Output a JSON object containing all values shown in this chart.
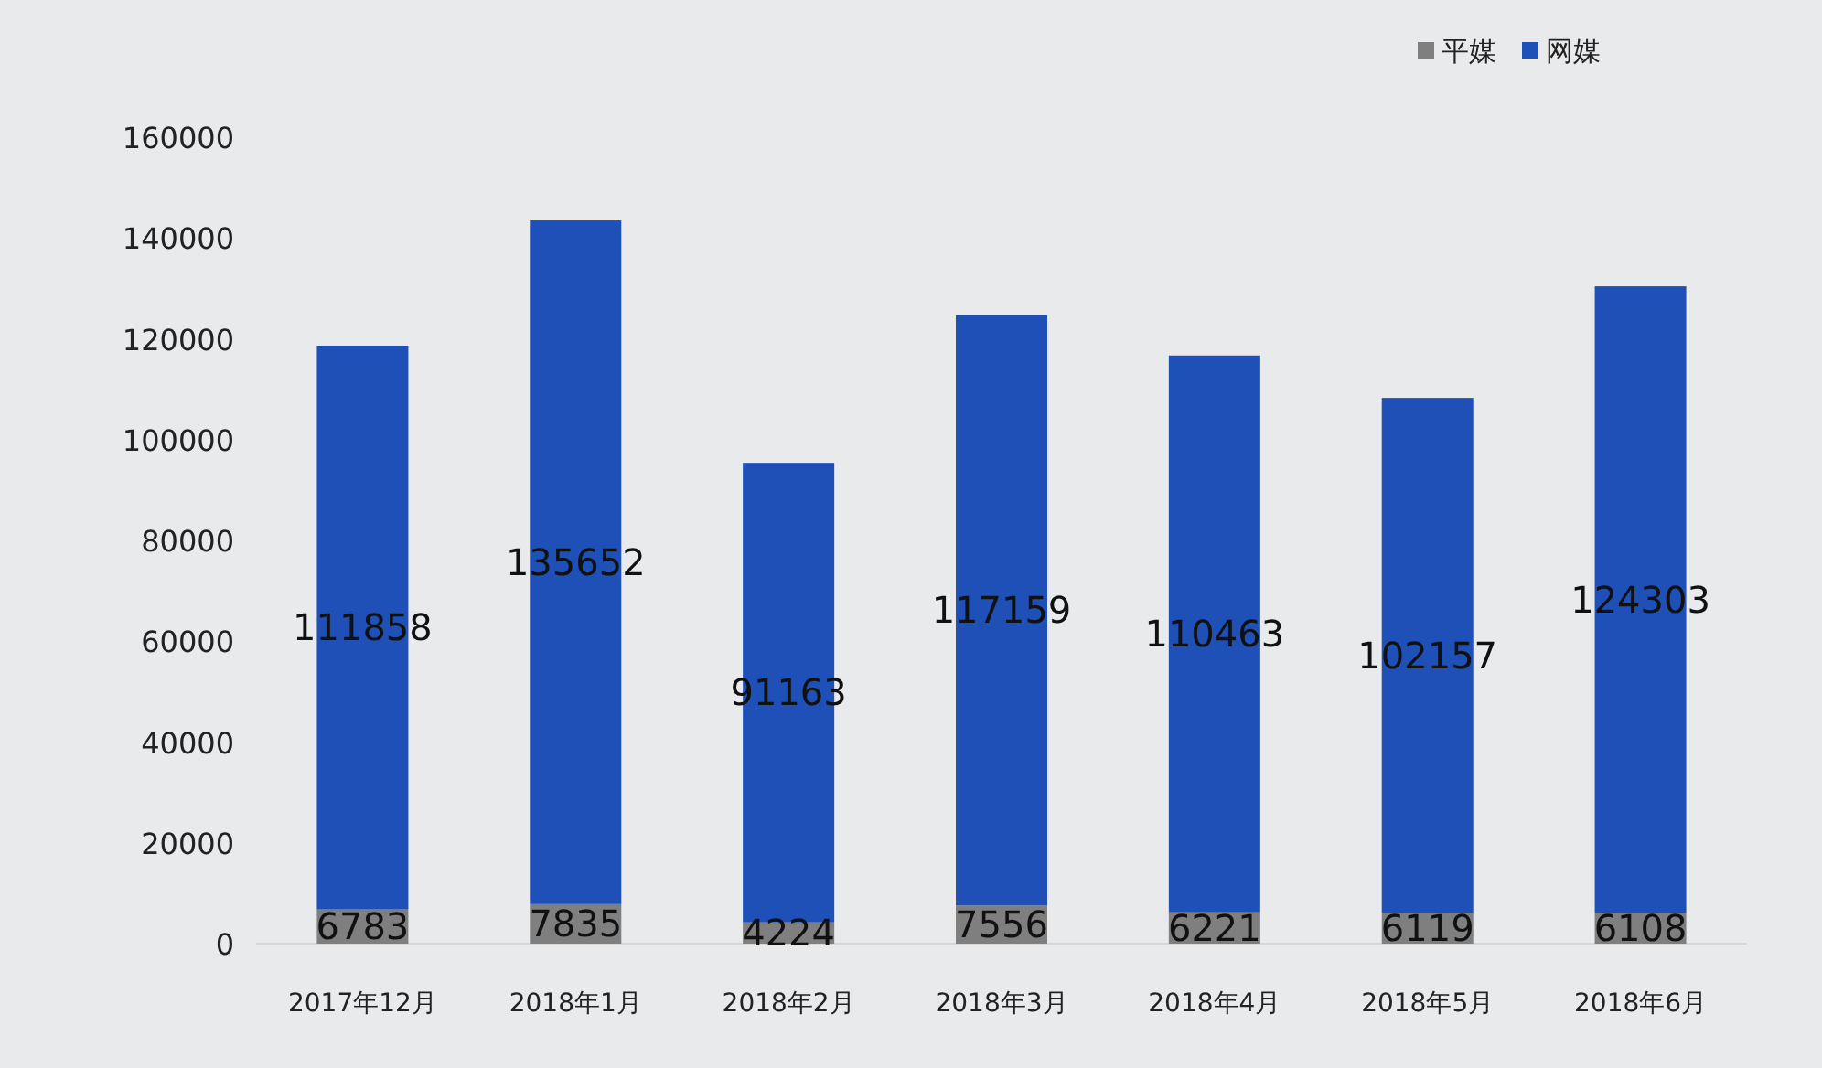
{
  "chart_data": {
    "type": "bar",
    "stacked": true,
    "categories": [
      "2017年12月",
      "2018年1月",
      "2018年2月",
      "2018年3月",
      "2018年4月",
      "2018年5月",
      "2018年6月"
    ],
    "series": [
      {
        "name": "平媒",
        "color": "#7f7f7f",
        "values": [
          6783,
          7835,
          4224,
          7556,
          6221,
          6119,
          6108
        ]
      },
      {
        "name": "网媒",
        "color": "#1e50b8",
        "values": [
          111858,
          135652,
          91163,
          117159,
          110463,
          102157,
          124303
        ]
      }
    ],
    "ylim": [
      0,
      160000
    ],
    "yticks": [
      0,
      20000,
      40000,
      60000,
      80000,
      100000,
      120000,
      140000,
      160000
    ],
    "data_labels": true,
    "legend": "top right",
    "grid": false
  }
}
